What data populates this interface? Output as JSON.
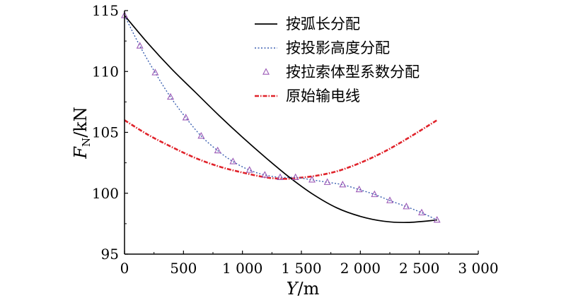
{
  "chart_data": {
    "type": "line",
    "title": "",
    "xlabel_italic": "Y",
    "xlabel_rest": "/m",
    "ylabel_italic": "F",
    "ylabel_sub": "N",
    "ylabel_rest": "/kN",
    "xlim": [
      0,
      3000
    ],
    "ylim": [
      95,
      115
    ],
    "x_ticks": [
      0,
      500,
      1000,
      1500,
      2000,
      2500,
      3000
    ],
    "x_tick_labels": [
      "0",
      "500",
      "1 000",
      "1 500",
      "2 000",
      "2 500",
      "3 000"
    ],
    "y_ticks": [
      95,
      100,
      105,
      110,
      115
    ],
    "y_tick_labels": [
      "95",
      "100",
      "105",
      "110",
      "115"
    ],
    "grid": false,
    "legend_position": "top-right",
    "series": [
      {
        "name": "按弧长分配",
        "style": "solid",
        "color": "#000000",
        "x": [
          0,
          200,
          400,
          600,
          800,
          1000,
          1200,
          1400,
          1600,
          1800,
          2000,
          2200,
          2400,
          2650
        ],
        "y": [
          114.6,
          112.3,
          110.2,
          108.3,
          106.4,
          104.6,
          102.9,
          101.3,
          99.9,
          98.8,
          98.1,
          97.7,
          97.6,
          97.8
        ]
      },
      {
        "name": "按投影高度分配",
        "style": "dotted",
        "color": "#3a5fb0",
        "x": [
          0,
          130,
          260,
          390,
          520,
          650,
          790,
          920,
          1060,
          1190,
          1320,
          1450,
          1590,
          1720,
          1850,
          1990,
          2120,
          2250,
          2390,
          2520,
          2650
        ],
        "y": [
          114.6,
          112.1,
          109.9,
          107.9,
          106.2,
          104.7,
          103.5,
          102.6,
          101.9,
          101.5,
          101.3,
          101.3,
          101.1,
          100.9,
          100.7,
          100.3,
          99.9,
          99.4,
          98.9,
          98.4,
          97.8
        ]
      },
      {
        "name": "按拉索体型系数分配",
        "style": "triangle",
        "color": "#9b59b6",
        "x": [
          0,
          130,
          260,
          390,
          520,
          650,
          790,
          920,
          1060,
          1190,
          1320,
          1450,
          1590,
          1720,
          1850,
          1990,
          2120,
          2250,
          2390,
          2520,
          2650
        ],
        "y": [
          114.6,
          112.1,
          109.9,
          107.9,
          106.2,
          104.7,
          103.5,
          102.6,
          101.9,
          101.5,
          101.3,
          101.3,
          101.1,
          100.9,
          100.7,
          100.3,
          99.9,
          99.4,
          98.9,
          98.4,
          97.8
        ]
      },
      {
        "name": "原始输电线",
        "style": "dashdot",
        "color": "#e0222a",
        "x": [
          0,
          200,
          400,
          600,
          800,
          1000,
          1200,
          1325,
          1400,
          1600,
          1800,
          2000,
          2200,
          2400,
          2650
        ],
        "y": [
          106.0,
          104.8,
          103.8,
          102.9,
          102.2,
          101.7,
          101.3,
          101.2,
          101.2,
          101.4,
          101.8,
          102.5,
          103.4,
          104.5,
          106.0
        ]
      }
    ]
  }
}
